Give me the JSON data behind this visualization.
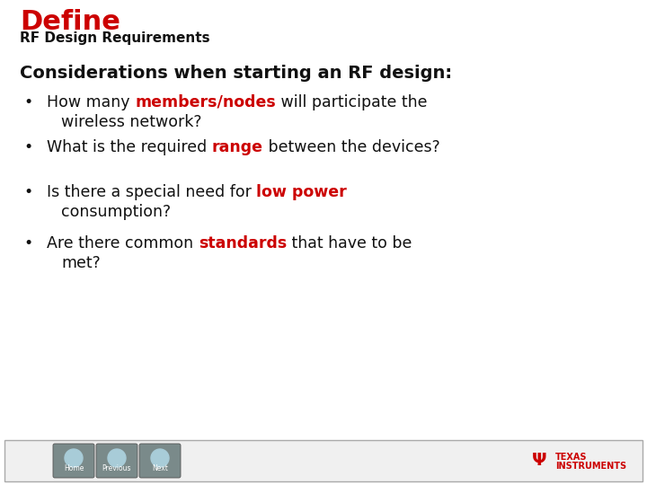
{
  "title_large": "Define",
  "title_large_color": "#cc0000",
  "title_sub": "RF Design Requirements",
  "title_sub_color": "#111111",
  "bg_color": "#ffffff",
  "heading": "Considerations when starting an RF design:",
  "heading_color": "#111111",
  "black_color": "#111111",
  "red_color": "#cc0000",
  "bullet_char": "•",
  "footer_bg": "#f0f0f0",
  "footer_border": "#aaaaaa",
  "nav_btn_bg": "#7a8a8a",
  "nav_btn_circle": "#a8ccd8",
  "nav_labels": [
    "Home",
    "Previous",
    "Next"
  ],
  "ti_text_color": "#cc0000",
  "title_fontsize": 22,
  "subtitle_fontsize": 11,
  "heading_fontsize": 14,
  "bullet_fontsize": 12.5
}
